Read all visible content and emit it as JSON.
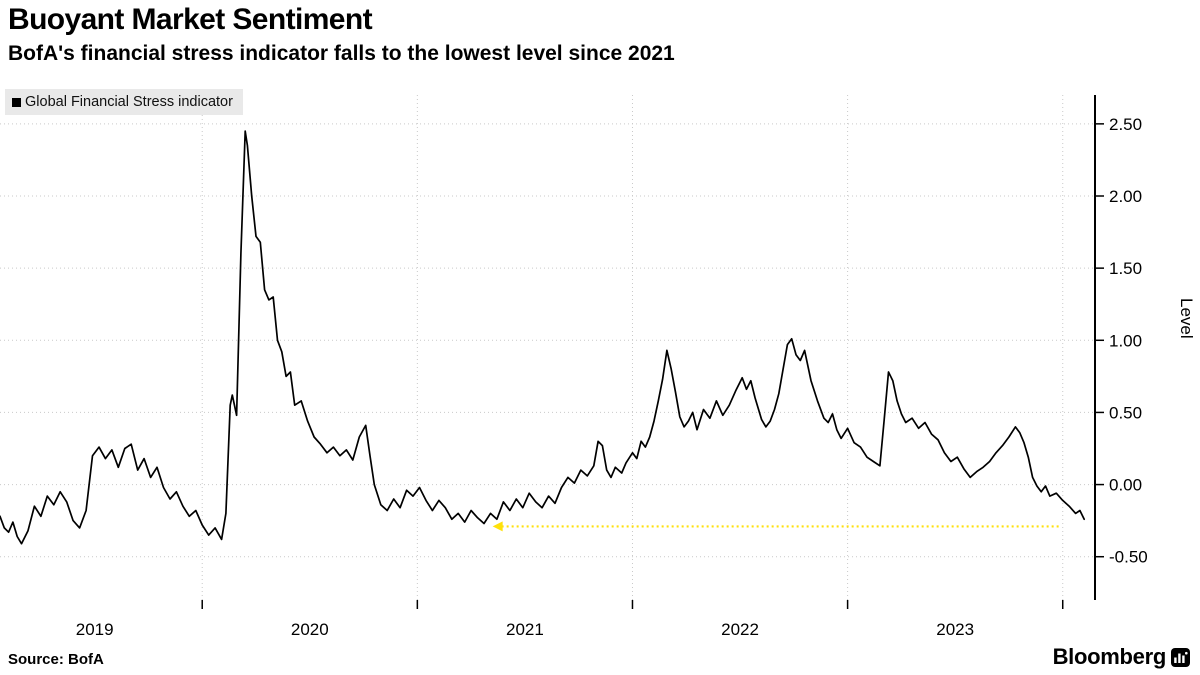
{
  "header": {
    "title": "Buoyant Market Sentiment",
    "subtitle": "BofA's financial stress indicator falls to the lowest level since 2021"
  },
  "legend": {
    "items": [
      {
        "label": "Global Financial Stress indicator",
        "marker": "square-icon",
        "color": "#000000"
      }
    ]
  },
  "footer": {
    "source": "Source: BofA",
    "brand": "Bloomberg"
  },
  "chart_data": {
    "type": "line",
    "title": "Buoyant Market Sentiment",
    "subtitle": "BofA's financial stress indicator falls to the lowest level since 2021",
    "xlabel": "",
    "ylabel": "Level",
    "x_range": [
      2019.06,
      2024.15
    ],
    "ylim": [
      -0.8,
      2.7
    ],
    "grid": true,
    "legend_position": "top-left",
    "y_ticks": [
      {
        "value": 2.5,
        "label": "2.50"
      },
      {
        "value": 2.0,
        "label": "2.00"
      },
      {
        "value": 1.5,
        "label": "1.50"
      },
      {
        "value": 1.0,
        "label": "1.00"
      },
      {
        "value": 0.5,
        "label": "0.50"
      },
      {
        "value": 0.0,
        "label": "0.00"
      },
      {
        "value": -0.5,
        "label": "-0.50"
      }
    ],
    "x_ticks": [
      {
        "center": 2019.5,
        "label": "2019"
      },
      {
        "center": 2020.5,
        "label": "2020"
      },
      {
        "center": 2021.5,
        "label": "2021"
      },
      {
        "center": 2022.5,
        "label": "2022"
      },
      {
        "center": 2023.5,
        "label": "2023"
      }
    ],
    "x_grid_years": [
      2020,
      2021,
      2022,
      2023,
      2024
    ],
    "annotation": {
      "type": "arrow-left",
      "y": -0.29,
      "x_start": 2021.35,
      "x_end": 2023.99,
      "color": "#FFE10A",
      "style": "dotted"
    },
    "series": [
      {
        "name": "Global Financial Stress indicator",
        "color": "#000000",
        "points": [
          [
            2019.06,
            -0.22
          ],
          [
            2019.08,
            -0.3
          ],
          [
            2019.1,
            -0.33
          ],
          [
            2019.12,
            -0.26
          ],
          [
            2019.14,
            -0.36
          ],
          [
            2019.16,
            -0.41
          ],
          [
            2019.19,
            -0.32
          ],
          [
            2019.22,
            -0.15
          ],
          [
            2019.25,
            -0.22
          ],
          [
            2019.28,
            -0.08
          ],
          [
            2019.31,
            -0.14
          ],
          [
            2019.34,
            -0.05
          ],
          [
            2019.37,
            -0.12
          ],
          [
            2019.4,
            -0.25
          ],
          [
            2019.43,
            -0.3
          ],
          [
            2019.46,
            -0.18
          ],
          [
            2019.49,
            0.2
          ],
          [
            2019.52,
            0.26
          ],
          [
            2019.55,
            0.18
          ],
          [
            2019.58,
            0.24
          ],
          [
            2019.61,
            0.12
          ],
          [
            2019.64,
            0.25
          ],
          [
            2019.67,
            0.28
          ],
          [
            2019.7,
            0.1
          ],
          [
            2019.73,
            0.18
          ],
          [
            2019.76,
            0.05
          ],
          [
            2019.79,
            0.12
          ],
          [
            2019.82,
            -0.02
          ],
          [
            2019.85,
            -0.1
          ],
          [
            2019.88,
            -0.05
          ],
          [
            2019.91,
            -0.15
          ],
          [
            2019.94,
            -0.22
          ],
          [
            2019.97,
            -0.18
          ],
          [
            2020.0,
            -0.28
          ],
          [
            2020.03,
            -0.35
          ],
          [
            2020.06,
            -0.3
          ],
          [
            2020.09,
            -0.38
          ],
          [
            2020.11,
            -0.2
          ],
          [
            2020.13,
            0.55
          ],
          [
            2020.14,
            0.62
          ],
          [
            2020.16,
            0.48
          ],
          [
            2020.18,
            1.6
          ],
          [
            2020.2,
            2.45
          ],
          [
            2020.21,
            2.35
          ],
          [
            2020.23,
            2.0
          ],
          [
            2020.25,
            1.72
          ],
          [
            2020.27,
            1.68
          ],
          [
            2020.29,
            1.35
          ],
          [
            2020.31,
            1.28
          ],
          [
            2020.33,
            1.3
          ],
          [
            2020.35,
            1.0
          ],
          [
            2020.37,
            0.92
          ],
          [
            2020.39,
            0.75
          ],
          [
            2020.41,
            0.78
          ],
          [
            2020.43,
            0.55
          ],
          [
            2020.46,
            0.58
          ],
          [
            2020.49,
            0.44
          ],
          [
            2020.52,
            0.33
          ],
          [
            2020.55,
            0.28
          ],
          [
            2020.58,
            0.22
          ],
          [
            2020.61,
            0.26
          ],
          [
            2020.64,
            0.2
          ],
          [
            2020.67,
            0.24
          ],
          [
            2020.7,
            0.17
          ],
          [
            2020.73,
            0.33
          ],
          [
            2020.76,
            0.41
          ],
          [
            2020.78,
            0.2
          ],
          [
            2020.8,
            0.0
          ],
          [
            2020.83,
            -0.14
          ],
          [
            2020.86,
            -0.18
          ],
          [
            2020.89,
            -0.1
          ],
          [
            2020.92,
            -0.16
          ],
          [
            2020.95,
            -0.04
          ],
          [
            2020.98,
            -0.08
          ],
          [
            2021.01,
            -0.02
          ],
          [
            2021.04,
            -0.11
          ],
          [
            2021.07,
            -0.18
          ],
          [
            2021.1,
            -0.11
          ],
          [
            2021.13,
            -0.16
          ],
          [
            2021.16,
            -0.24
          ],
          [
            2021.19,
            -0.2
          ],
          [
            2021.22,
            -0.26
          ],
          [
            2021.25,
            -0.18
          ],
          [
            2021.28,
            -0.23
          ],
          [
            2021.31,
            -0.27
          ],
          [
            2021.34,
            -0.2
          ],
          [
            2021.37,
            -0.24
          ],
          [
            2021.4,
            -0.12
          ],
          [
            2021.43,
            -0.18
          ],
          [
            2021.46,
            -0.1
          ],
          [
            2021.49,
            -0.16
          ],
          [
            2021.52,
            -0.06
          ],
          [
            2021.55,
            -0.12
          ],
          [
            2021.58,
            -0.16
          ],
          [
            2021.61,
            -0.08
          ],
          [
            2021.64,
            -0.13
          ],
          [
            2021.67,
            -0.02
          ],
          [
            2021.7,
            0.05
          ],
          [
            2021.73,
            0.01
          ],
          [
            2021.76,
            0.1
          ],
          [
            2021.79,
            0.06
          ],
          [
            2021.82,
            0.13
          ],
          [
            2021.84,
            0.3
          ],
          [
            2021.86,
            0.27
          ],
          [
            2021.88,
            0.1
          ],
          [
            2021.9,
            0.05
          ],
          [
            2021.92,
            0.12
          ],
          [
            2021.95,
            0.08
          ],
          [
            2021.97,
            0.15
          ],
          [
            2022.0,
            0.22
          ],
          [
            2022.02,
            0.18
          ],
          [
            2022.04,
            0.3
          ],
          [
            2022.06,
            0.26
          ],
          [
            2022.08,
            0.33
          ],
          [
            2022.1,
            0.44
          ],
          [
            2022.12,
            0.58
          ],
          [
            2022.14,
            0.73
          ],
          [
            2022.16,
            0.93
          ],
          [
            2022.18,
            0.8
          ],
          [
            2022.2,
            0.64
          ],
          [
            2022.22,
            0.47
          ],
          [
            2022.24,
            0.4
          ],
          [
            2022.26,
            0.44
          ],
          [
            2022.28,
            0.5
          ],
          [
            2022.3,
            0.38
          ],
          [
            2022.33,
            0.52
          ],
          [
            2022.36,
            0.46
          ],
          [
            2022.39,
            0.58
          ],
          [
            2022.42,
            0.48
          ],
          [
            2022.45,
            0.55
          ],
          [
            2022.48,
            0.65
          ],
          [
            2022.51,
            0.74
          ],
          [
            2022.53,
            0.66
          ],
          [
            2022.55,
            0.72
          ],
          [
            2022.57,
            0.6
          ],
          [
            2022.6,
            0.45
          ],
          [
            2022.62,
            0.4
          ],
          [
            2022.64,
            0.44
          ],
          [
            2022.66,
            0.52
          ],
          [
            2022.68,
            0.63
          ],
          [
            2022.7,
            0.8
          ],
          [
            2022.72,
            0.97
          ],
          [
            2022.74,
            1.01
          ],
          [
            2022.76,
            0.9
          ],
          [
            2022.78,
            0.86
          ],
          [
            2022.8,
            0.93
          ],
          [
            2022.83,
            0.72
          ],
          [
            2022.86,
            0.58
          ],
          [
            2022.89,
            0.46
          ],
          [
            2022.91,
            0.43
          ],
          [
            2022.93,
            0.49
          ],
          [
            2022.95,
            0.38
          ],
          [
            2022.97,
            0.32
          ],
          [
            2023.0,
            0.39
          ],
          [
            2023.03,
            0.29
          ],
          [
            2023.06,
            0.26
          ],
          [
            2023.09,
            0.19
          ],
          [
            2023.12,
            0.16
          ],
          [
            2023.15,
            0.13
          ],
          [
            2023.17,
            0.45
          ],
          [
            2023.19,
            0.78
          ],
          [
            2023.21,
            0.72
          ],
          [
            2023.23,
            0.58
          ],
          [
            2023.25,
            0.49
          ],
          [
            2023.27,
            0.43
          ],
          [
            2023.3,
            0.46
          ],
          [
            2023.33,
            0.39
          ],
          [
            2023.36,
            0.43
          ],
          [
            2023.39,
            0.35
          ],
          [
            2023.42,
            0.31
          ],
          [
            2023.45,
            0.22
          ],
          [
            2023.48,
            0.16
          ],
          [
            2023.51,
            0.19
          ],
          [
            2023.54,
            0.11
          ],
          [
            2023.57,
            0.05
          ],
          [
            2023.6,
            0.09
          ],
          [
            2023.63,
            0.12
          ],
          [
            2023.66,
            0.16
          ],
          [
            2023.69,
            0.22
          ],
          [
            2023.72,
            0.27
          ],
          [
            2023.75,
            0.33
          ],
          [
            2023.78,
            0.4
          ],
          [
            2023.8,
            0.36
          ],
          [
            2023.82,
            0.29
          ],
          [
            2023.84,
            0.19
          ],
          [
            2023.86,
            0.05
          ],
          [
            2023.88,
            -0.01
          ],
          [
            2023.9,
            -0.05
          ],
          [
            2023.92,
            -0.01
          ],
          [
            2023.94,
            -0.08
          ],
          [
            2023.97,
            -0.06
          ],
          [
            2024.0,
            -0.11
          ],
          [
            2024.03,
            -0.15
          ],
          [
            2024.06,
            -0.2
          ],
          [
            2024.08,
            -0.18
          ],
          [
            2024.1,
            -0.24
          ]
        ]
      }
    ]
  }
}
